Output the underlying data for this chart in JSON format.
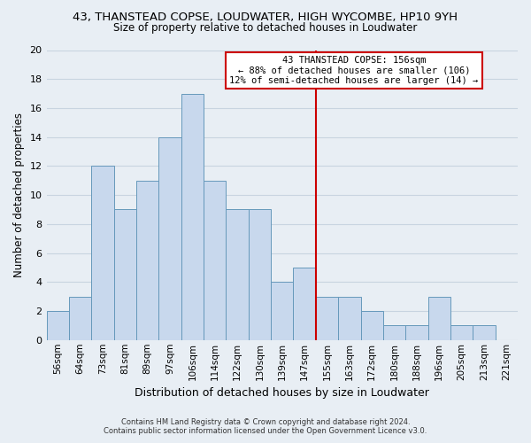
{
  "title": "43, THANSTEAD COPSE, LOUDWATER, HIGH WYCOMBE, HP10 9YH",
  "subtitle": "Size of property relative to detached houses in Loudwater",
  "xlabel": "Distribution of detached houses by size in Loudwater",
  "ylabel": "Number of detached properties",
  "bar_labels": [
    "56sqm",
    "64sqm",
    "73sqm",
    "81sqm",
    "89sqm",
    "97sqm",
    "106sqm",
    "114sqm",
    "122sqm",
    "130sqm",
    "139sqm",
    "147sqm",
    "155sqm",
    "163sqm",
    "172sqm",
    "180sqm",
    "188sqm",
    "196sqm",
    "205sqm",
    "213sqm",
    "221sqm"
  ],
  "bar_values": [
    2,
    3,
    12,
    9,
    11,
    14,
    17,
    11,
    9,
    9,
    4,
    5,
    3,
    3,
    2,
    1,
    1,
    3,
    1,
    1,
    0
  ],
  "bar_color": "#c8d8ed",
  "bar_edge_color": "#6699bb",
  "ylim": [
    0,
    20
  ],
  "yticks": [
    0,
    2,
    4,
    6,
    8,
    10,
    12,
    14,
    16,
    18,
    20
  ],
  "vline_x": 11.5,
  "vline_color": "#cc0000",
  "annotation_title": "43 THANSTEAD COPSE: 156sqm",
  "annotation_line1": "← 88% of detached houses are smaller (106)",
  "annotation_line2": "12% of semi-detached houses are larger (14) →",
  "annotation_box_color": "#ffffff",
  "annotation_box_edge": "#cc0000",
  "footnote1": "Contains HM Land Registry data © Crown copyright and database right 2024.",
  "footnote2": "Contains public sector information licensed under the Open Government Licence v3.0.",
  "grid_color": "#c8d4e0",
  "background_color": "#e8eef4"
}
